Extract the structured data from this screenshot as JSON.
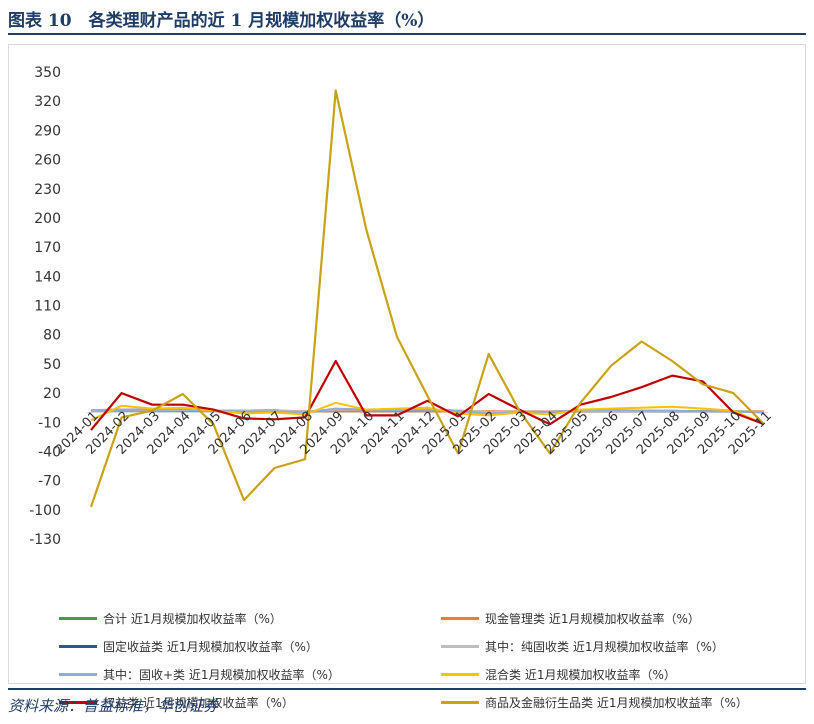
{
  "header": {
    "title": "图表 10　各类理财产品的近 1 月规模加权收益率（%）"
  },
  "footer": {
    "source": "资料来源：普益标准，华创证券"
  },
  "chart_data": {
    "type": "line",
    "title": "",
    "xlabel": "",
    "ylabel": "",
    "ylim": [
      -130,
      350
    ],
    "yticks": [
      350,
      320,
      290,
      260,
      230,
      200,
      170,
      140,
      110,
      80,
      50,
      20,
      -10,
      -40,
      -70,
      -100,
      -130
    ],
    "grid": false,
    "legend_position": "bottom",
    "categories": [
      "2024-01",
      "2024-02",
      "2024-03",
      "2024-04",
      "2024-05",
      "2024-06",
      "2024-07",
      "2024-08",
      "2024-09",
      "2024-10",
      "2024-11",
      "2024-12",
      "2025-01",
      "2025-02",
      "2025-03",
      "2025-04",
      "2025-05",
      "2025-06",
      "2025-07",
      "2025-08",
      "2025-09",
      "2025-10",
      "2025-11"
    ],
    "series": [
      {
        "name": "合计 近1月规模加权收益率（%）",
        "color": "#4e9a3a",
        "values": [
          2,
          2.5,
          2.5,
          2,
          1.8,
          1.5,
          1.5,
          1,
          3,
          2.5,
          2,
          2.5,
          1.5,
          0.5,
          1,
          0.5,
          1.5,
          2,
          2,
          1.5,
          1.5,
          1.5,
          0.5
        ]
      },
      {
        "name": "现金管理类 近1月规模加权收益率（%）",
        "color": "#ed7d31",
        "values": [
          1.8,
          1.7,
          1.7,
          1.6,
          1.6,
          1.5,
          1.5,
          1.4,
          1.4,
          1.4,
          1.4,
          1.4,
          1.4,
          1.4,
          1.3,
          1.3,
          1.3,
          1.3,
          1.3,
          1.3,
          1.2,
          1.2,
          1.2
        ]
      },
      {
        "name": "固定收益类 近1月规模加权收益率（%）",
        "color": "#2f5597",
        "values": [
          2.5,
          3,
          3,
          2.5,
          2,
          2,
          2.5,
          0.5,
          3.5,
          3,
          2.5,
          3,
          2,
          0,
          1,
          1,
          1.5,
          1.5,
          1,
          1.5,
          1,
          1,
          0.5
        ]
      },
      {
        "name": "其中：纯固收类 近1月规模加权收益率（%）",
        "color": "#bfbfbf",
        "values": [
          2.5,
          2.8,
          2.8,
          2.5,
          2,
          2,
          2.5,
          1,
          3,
          3,
          2.5,
          3,
          2,
          0.5,
          1,
          1,
          1.5,
          1.5,
          1,
          1.5,
          1,
          1,
          0.5
        ]
      },
      {
        "name": "其中：固收+类 近1月规模加权收益率（%）",
        "color": "#8faadc",
        "values": [
          2,
          3,
          3.5,
          3,
          2,
          1,
          1,
          0,
          4,
          3,
          2.5,
          3.5,
          1.5,
          -1,
          0.5,
          0.5,
          2,
          2.5,
          2,
          2,
          1,
          1,
          0
        ]
      },
      {
        "name": "混合类 近1月规模加权收益率（%）",
        "color": "#ffc000",
        "values": [
          -8,
          7,
          4,
          5,
          2,
          -1,
          0,
          -2,
          10,
          3,
          4,
          5,
          -1,
          -3,
          0,
          -2,
          3,
          4,
          5,
          6,
          4,
          2,
          -12
        ]
      },
      {
        "name": "权益类 近1月规模加权收益率（%）",
        "color": "#c00000",
        "values": [
          -18,
          20,
          8,
          8,
          3,
          -6,
          -7,
          -5,
          53,
          -3,
          -3,
          12,
          -4,
          19,
          3,
          -12,
          8,
          16,
          26,
          38,
          32,
          0,
          -12
        ]
      },
      {
        "name": "商品及金融衍生品类 近1月规模加权收益率（%）",
        "color": "#c9a216",
        "values": [
          -97,
          -5,
          2,
          19,
          -12,
          -90,
          -57,
          -48,
          331,
          188,
          78,
          17,
          -42,
          60,
          2,
          -42,
          10,
          48,
          73,
          53,
          29,
          20,
          -12
        ]
      }
    ]
  }
}
